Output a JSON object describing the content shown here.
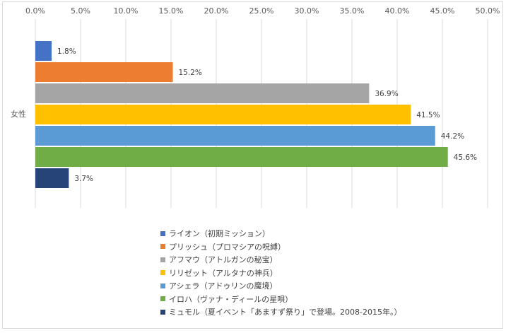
{
  "chart_data": {
    "type": "bar",
    "orientation": "horizontal",
    "categories": [
      "女性"
    ],
    "series": [
      {
        "name": "ライオン（初期ミッション）",
        "values": [
          1.8
        ],
        "color": "#4472c4"
      },
      {
        "name": "プリッシュ（プロマシアの呪縛）",
        "values": [
          15.2
        ],
        "color": "#ed7d31"
      },
      {
        "name": "アフマウ（アトルガンの秘宝）",
        "values": [
          36.9
        ],
        "color": "#a5a5a5"
      },
      {
        "name": "リリゼット（アルタナの神兵）",
        "values": [
          41.5
        ],
        "color": "#ffc000"
      },
      {
        "name": "アシェラ（アドゥリンの魔境）",
        "values": [
          44.2
        ],
        "color": "#5b9bd5"
      },
      {
        "name": "イロハ（ヴァナ・ディールの星唄）",
        "values": [
          45.6
        ],
        "color": "#70ad47"
      },
      {
        "name": "ミュモル（夏イベント「あますず祭り」で登場。2008-2015年。）",
        "values": [
          3.7
        ],
        "color": "#264478"
      }
    ],
    "data_labels": [
      "1.8%",
      "15.2%",
      "36.9%",
      "41.5%",
      "44.2%",
      "45.6%",
      "3.7%"
    ],
    "xlim": [
      0,
      50
    ],
    "xticks": [
      0,
      5,
      10,
      15,
      20,
      25,
      30,
      35,
      40,
      45,
      50
    ],
    "xtick_labels": [
      "0.0%",
      "5.0%",
      "10.0%",
      "15.0%",
      "20.0%",
      "25.0%",
      "30.0%",
      "35.0%",
      "40.0%",
      "45.0%",
      "50.0%"
    ],
    "axis_position": "top",
    "grid": true,
    "legend_position": "bottom",
    "title": "",
    "xlabel": "",
    "ylabel": ""
  }
}
